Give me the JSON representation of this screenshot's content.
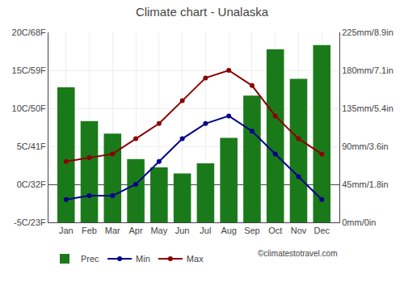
{
  "chart_data": {
    "type": "line",
    "title": "Climate chart - Unalaska",
    "categories": [
      "Jan",
      "Feb",
      "Mar",
      "Apr",
      "May",
      "Jun",
      "Jul",
      "Aug",
      "Sep",
      "Oct",
      "Nov",
      "Dec"
    ],
    "series": [
      {
        "name": "Prec",
        "type": "bar",
        "axis": "y2",
        "color": "#1a7a1a",
        "values": [
          160,
          120,
          105,
          75,
          65,
          58,
          70,
          100,
          150,
          205,
          170,
          210
        ]
      },
      {
        "name": "Min",
        "type": "line",
        "color": "#00008B",
        "marker": "o",
        "values": [
          -2.0,
          -1.5,
          -1.5,
          0.0,
          3.0,
          6.0,
          8.0,
          9.0,
          7.0,
          4.0,
          1.0,
          -2.0
        ]
      },
      {
        "name": "Max",
        "type": "line",
        "color": "#8B0000",
        "marker": "o",
        "values": [
          3.0,
          3.5,
          4.0,
          6.0,
          8.0,
          11.0,
          14.0,
          15.0,
          13.0,
          9.0,
          6.0,
          4.0
        ]
      }
    ],
    "ylim": [
      -5,
      20
    ],
    "yticks": [
      {
        "value": -5,
        "label": "-5C/23F"
      },
      {
        "value": 0,
        "label": "0C/32F"
      },
      {
        "value": 5,
        "label": "5C/41F"
      },
      {
        "value": 10,
        "label": "10C/50F"
      },
      {
        "value": 15,
        "label": "15C/59F"
      },
      {
        "value": 20,
        "label": "20C/68F"
      }
    ],
    "y2lim": [
      0,
      225
    ],
    "y2ticks": [
      {
        "value": 0,
        "label": "0mm/0in"
      },
      {
        "value": 45,
        "label": "45mm/1.8in"
      },
      {
        "value": 90,
        "label": "90mm/3.6in"
      },
      {
        "value": 135,
        "label": "135mm/5.4in"
      },
      {
        "value": 180,
        "label": "180mm/7.1in"
      },
      {
        "value": 225,
        "label": "225mm/8.9in"
      }
    ],
    "grid": true,
    "legend": "lower left",
    "annotations": [
      "©climatestotravel.com"
    ]
  }
}
